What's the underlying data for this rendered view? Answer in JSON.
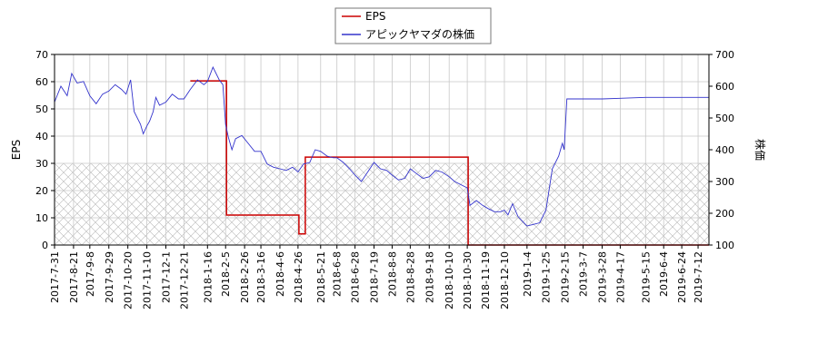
{
  "chart_data": {
    "type": "line",
    "legend": {
      "placement": "top-center",
      "entries": [
        {
          "label": "EPS",
          "color": "#cc0000"
        },
        {
          "label": "アピックヤマダの株価",
          "color": "#3333cc"
        }
      ]
    },
    "y_left": {
      "label": "EPS",
      "ticks": [
        0,
        10,
        20,
        30,
        40,
        50,
        60,
        70
      ],
      "range": [
        0,
        70
      ]
    },
    "y_right": {
      "label": "株価",
      "ticks": [
        100,
        200,
        300,
        400,
        500,
        600,
        700
      ],
      "range": [
        100,
        700
      ]
    },
    "x_range": [
      "2017-07-31",
      "2019-07-24"
    ],
    "x_ticks": [
      "2017-7-31",
      "2017-8-21",
      "2017-9-8",
      "2017-9-29",
      "2017-10-20",
      "2017-11-10",
      "2017-12-1",
      "2017-12-21",
      "2018-1-16",
      "2018-2-5",
      "2018-2-26",
      "2018-3-16",
      "2018-4-6",
      "2018-4-26",
      "2018-5-21",
      "2018-6-8",
      "2018-6-28",
      "2018-7-19",
      "2018-8-8",
      "2018-8-28",
      "2018-9-18",
      "2018-10-10",
      "2018-10-30",
      "2018-11-19",
      "2018-12-10",
      "2019-1-4",
      "2019-1-25",
      "2019-2-15",
      "2019-3-7",
      "2019-3-28",
      "2019-4-17",
      "2019-5-15",
      "2019-6-4",
      "2019-6-24",
      "2019-7-12"
    ],
    "grid": true,
    "hatched_region_below_eps": 30,
    "series": [
      {
        "name": "EPS",
        "axis": "left",
        "color": "#cc0000",
        "step": true,
        "points": [
          [
            "2017-12-28",
            60.3
          ],
          [
            "2018-2-6",
            60.3
          ],
          [
            "2018-2-6",
            11.0
          ],
          [
            "2018-4-27",
            11.0
          ],
          [
            "2018-4-27",
            4.1
          ],
          [
            "2018-5-4",
            4.1
          ],
          [
            "2018-5-4",
            32.3
          ],
          [
            "2018-10-31",
            32.3
          ],
          [
            "2018-10-31",
            0.0
          ],
          [
            "2019-7-24",
            0.0
          ]
        ]
      },
      {
        "name": "アピックヤマダの株価",
        "axis": "right",
        "color": "#3333cc",
        "points": [
          [
            "2017-7-31",
            550
          ],
          [
            "2017-8-7",
            600
          ],
          [
            "2017-8-14",
            570
          ],
          [
            "2017-8-19",
            640
          ],
          [
            "2017-8-25",
            610
          ],
          [
            "2017-9-1",
            615
          ],
          [
            "2017-9-8",
            570
          ],
          [
            "2017-9-15",
            545
          ],
          [
            "2017-9-22",
            575
          ],
          [
            "2017-9-29",
            585
          ],
          [
            "2017-10-6",
            605
          ],
          [
            "2017-10-13",
            590
          ],
          [
            "2017-10-18",
            575
          ],
          [
            "2017-10-23",
            620
          ],
          [
            "2017-10-27",
            520
          ],
          [
            "2017-11-3",
            480
          ],
          [
            "2017-11-6",
            450
          ],
          [
            "2017-11-10",
            475
          ],
          [
            "2017-11-13",
            490
          ],
          [
            "2017-11-17",
            520
          ],
          [
            "2017-11-20",
            565
          ],
          [
            "2017-11-24",
            540
          ],
          [
            "2017-12-1",
            550
          ],
          [
            "2017-12-8",
            575
          ],
          [
            "2017-12-15",
            560
          ],
          [
            "2017-12-21",
            560
          ],
          [
            "2017-12-28",
            590
          ],
          [
            "2018-1-5",
            620
          ],
          [
            "2018-1-12",
            605
          ],
          [
            "2018-1-16",
            615
          ],
          [
            "2018-1-22",
            660
          ],
          [
            "2018-1-29",
            620
          ],
          [
            "2018-2-2",
            605
          ],
          [
            "2018-2-5",
            480
          ],
          [
            "2018-2-8",
            440
          ],
          [
            "2018-2-12",
            400
          ],
          [
            "2018-2-16",
            435
          ],
          [
            "2018-2-23",
            445
          ],
          [
            "2018-3-2",
            420
          ],
          [
            "2018-3-9",
            395
          ],
          [
            "2018-3-16",
            395
          ],
          [
            "2018-3-23",
            355
          ],
          [
            "2018-3-30",
            345
          ],
          [
            "2018-4-6",
            340
          ],
          [
            "2018-4-13",
            335
          ],
          [
            "2018-4-20",
            345
          ],
          [
            "2018-4-26",
            330
          ],
          [
            "2018-5-2",
            355
          ],
          [
            "2018-5-9",
            360
          ],
          [
            "2018-5-15",
            400
          ],
          [
            "2018-5-21",
            395
          ],
          [
            "2018-5-28",
            380
          ],
          [
            "2018-6-4",
            375
          ],
          [
            "2018-6-8",
            375
          ],
          [
            "2018-6-15",
            360
          ],
          [
            "2018-6-22",
            340
          ],
          [
            "2018-6-28",
            320
          ],
          [
            "2018-7-5",
            300
          ],
          [
            "2018-7-12",
            330
          ],
          [
            "2018-7-19",
            360
          ],
          [
            "2018-7-26",
            340
          ],
          [
            "2018-8-2",
            335
          ],
          [
            "2018-8-8",
            320
          ],
          [
            "2018-8-15",
            305
          ],
          [
            "2018-8-22",
            310
          ],
          [
            "2018-8-28",
            340
          ],
          [
            "2018-9-4",
            325
          ],
          [
            "2018-9-11",
            310
          ],
          [
            "2018-9-18",
            315
          ],
          [
            "2018-9-25",
            335
          ],
          [
            "2018-10-2",
            330
          ],
          [
            "2018-10-10",
            315
          ],
          [
            "2018-10-16",
            300
          ],
          [
            "2018-10-23",
            290
          ],
          [
            "2018-10-30",
            280
          ],
          [
            "2018-11-2",
            225
          ],
          [
            "2018-11-9",
            240
          ],
          [
            "2018-11-16",
            225
          ],
          [
            "2018-11-22",
            215
          ],
          [
            "2018-11-29",
            205
          ],
          [
            "2018-12-6",
            205
          ],
          [
            "2018-12-10",
            210
          ],
          [
            "2018-12-14",
            195
          ],
          [
            "2018-12-19",
            230
          ],
          [
            "2018-12-25",
            190
          ],
          [
            "2019-1-4",
            160
          ],
          [
            "2019-1-11",
            165
          ],
          [
            "2019-1-18",
            170
          ],
          [
            "2019-1-25",
            210
          ],
          [
            "2019-2-1",
            340
          ],
          [
            "2019-2-8",
            380
          ],
          [
            "2019-2-12",
            420
          ],
          [
            "2019-2-14",
            400
          ],
          [
            "2019-2-17",
            560
          ],
          [
            "2019-2-25",
            560
          ],
          [
            "2019-3-7",
            560
          ],
          [
            "2019-3-28",
            560
          ],
          [
            "2019-4-17",
            562
          ],
          [
            "2019-5-15",
            565
          ],
          [
            "2019-6-4",
            565
          ],
          [
            "2019-6-24",
            565
          ],
          [
            "2019-7-12",
            565
          ],
          [
            "2019-7-24",
            565
          ]
        ]
      }
    ]
  }
}
